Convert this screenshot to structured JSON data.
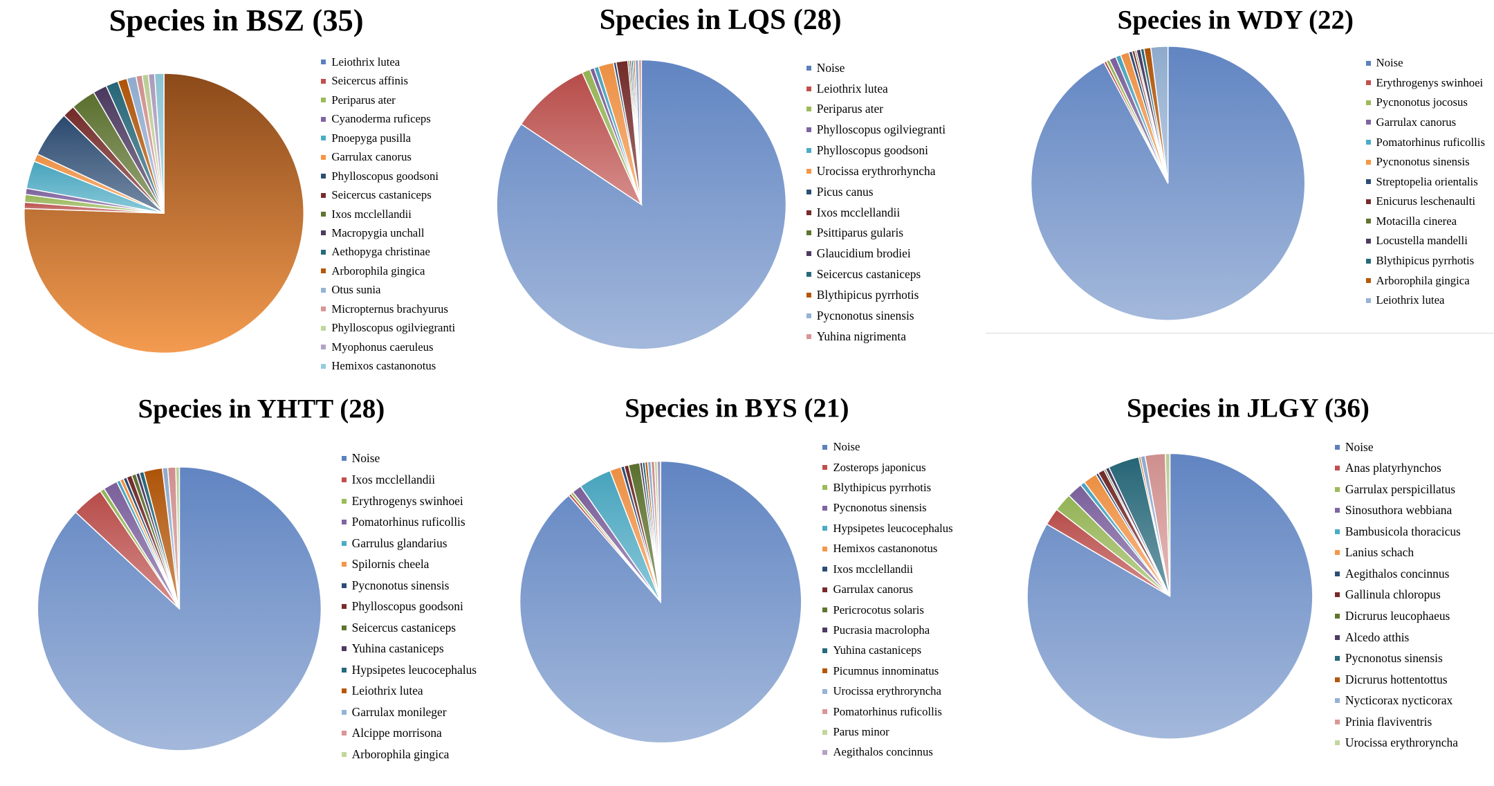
{
  "chart_data": [
    {
      "type": "pie",
      "title": "Species in BSZ (35)",
      "labels": [
        "Leiothrix lutea",
        "Seicercus affinis",
        "Periparus ater",
        "Cyanoderma ruficeps",
        "Pnoepyga pusilla",
        "Garrulax canorus",
        "Phylloscopus goodsoni",
        "Seicercus castaniceps",
        "Ixos mcclellandii",
        "Macropygia unchall",
        "Aethopyga christinae",
        "Arborophila gingica",
        "Otus sunia",
        "Micropternus brachyurus",
        "Phylloscopus ogilviegranti",
        "Myophonus caeruleus",
        "Hemixos castanonotus"
      ],
      "values": [
        42.3,
        0.4,
        0.5,
        0.4,
        1.8,
        0.5,
        3.0,
        0.8,
        1.6,
        0.9,
        0.8,
        0.6,
        0.6,
        0.4,
        0.4,
        0.4,
        0.6
      ],
      "legend_position": "right"
    },
    {
      "type": "pie",
      "title": "Species in LQS (28)",
      "labels": [
        "Noise",
        "Leiothrix lutea",
        "Periparus ater",
        "Phylloscopus ogilviegranti",
        "Phylloscopus goodsoni",
        "Urocissa erythrorhyncha",
        "Picus canus",
        "Ixos mcclellandii",
        "Psittiparus gularis",
        "Glaucidium brodiei",
        "Seicercus castaniceps",
        "Blythipicus pyrrhotis",
        "Pycnonotus sinensis",
        "Yuhina nigrimenta"
      ],
      "values": [
        84.3,
        8.9,
        0.9,
        0.5,
        0.5,
        1.7,
        0.3,
        1.3,
        0.2,
        0.2,
        0.2,
        0.2,
        0.4,
        0.3
      ],
      "legend_position": "right"
    },
    {
      "type": "pie",
      "title": "Species in WDY (22)",
      "labels": [
        "Noise",
        "Erythrogenys swinhoei",
        "Pycnonotus jocosus",
        "Garrulax canorus",
        "Pomatorhinus ruficollis",
        "Pycnonotus sinensis",
        "Streptopelia orientalis",
        "Enicurus leschenaulti",
        "Motacilla cinerea",
        "Locustella mandelli",
        "Blythipicus pyrrhotis",
        "Arborophila gingica",
        "Leiothrix lutea"
      ],
      "values": [
        91.6,
        0.3,
        0.4,
        0.8,
        0.6,
        1.0,
        0.4,
        0.3,
        0.2,
        0.5,
        0.4,
        0.8,
        2.0
      ],
      "legend_position": "right"
    },
    {
      "type": "pie",
      "title": "Species in YHTT (28)",
      "labels": [
        "Noise",
        "Ixos mcclellandii",
        "Erythrogenys swinhoei",
        "Pomatorhinus ruficollis",
        "Garrulus glandarius",
        "Spilornis cheela",
        "Pycnonotus sinensis",
        "Phylloscopus goodsoni",
        "Seicercus castaniceps",
        "Yuhina castaniceps",
        "Hypsipetes leucocephalus",
        "Leiothrix lutea",
        "Garrulax monileger",
        "Alcippe morrisona",
        "Arborophila gingica"
      ],
      "values": [
        85.8,
        3.6,
        0.5,
        1.6,
        0.4,
        0.4,
        0.4,
        0.6,
        0.5,
        0.4,
        0.5,
        2.1,
        0.6,
        0.9,
        0.4
      ],
      "legend_position": "right"
    },
    {
      "type": "pie",
      "title": "Species in BYS (21)",
      "labels": [
        "Noise",
        "Zosterops japonicus",
        "Blythipicus pyrrhotis",
        "Pycnonotus sinensis",
        "Hypsipetes leucocephalus",
        "Hemixos castanonotus",
        "Ixos mcclellandii",
        "Garrulax canorus",
        "Pericrocotus solaris",
        "Pucrasia macrolopha",
        "Yuhina castaniceps",
        "Picumnus innominatus",
        "Urocissa erythroryncha",
        "Pomatorhinus ruficollis",
        "Parus minor",
        "Aegithalos concinnus"
      ],
      "values": [
        89.2,
        0.3,
        0.3,
        1.1,
        3.8,
        1.3,
        0.4,
        0.5,
        1.3,
        0.3,
        0.3,
        0.3,
        0.4,
        0.4,
        0.3,
        0.4
      ],
      "legend_position": "right"
    },
    {
      "type": "pie",
      "title": "Species in JLGY (36)",
      "labels": [
        "Noise",
        "Anas platyrhynchos",
        "Garrulax perspicillatus",
        "Sinosuthora webbiana",
        "Bambusicola thoracicus",
        "Lanius schach",
        "Aegithalos concinnus",
        "Gallinula chloropus",
        "Dicrurus leucophaeus",
        "Alcedo atthis",
        "Pycnonotus sinensis",
        "Dicrurus hottentottus",
        "Nycticorax nycticorax",
        "Prinia flaviventris",
        "Urocissa erythroryncha"
      ],
      "values": [
        80.6,
        1.9,
        2.0,
        1.7,
        0.5,
        1.5,
        0.3,
        0.7,
        0.2,
        0.4,
        3.4,
        0.2,
        0.5,
        2.2,
        0.5
      ],
      "legend_position": "right"
    }
  ],
  "palette": [
    "#5b80bd",
    "#c0504d",
    "#9bbb59",
    "#8064a2",
    "#4bacc6",
    "#f79646",
    "#2c4d75",
    "#772c2a",
    "#5f7530",
    "#4d3b62",
    "#276a7c",
    "#b65708",
    "#95b3d7",
    "#d99694",
    "#c3d69b",
    "#b3a2c7",
    "#93cddd"
  ]
}
